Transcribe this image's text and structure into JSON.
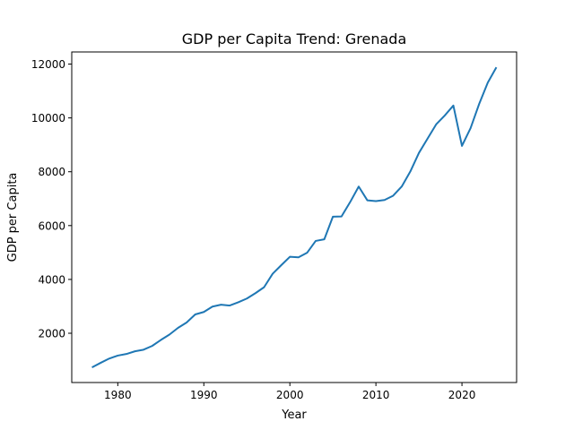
{
  "chart_data": {
    "type": "line",
    "title": "GDP per Capita Trend: Grenada",
    "xlabel": "Year",
    "ylabel": "GDP per Capita",
    "xlim": [
      1974.65,
      2026.35
    ],
    "ylim": [
      170,
      12450
    ],
    "grid": false,
    "xticks": [
      1980,
      1990,
      2000,
      2010,
      2020
    ],
    "yticks": [
      2000,
      4000,
      6000,
      8000,
      10000,
      12000
    ],
    "line_color": "#1f77b4",
    "series": [
      {
        "x": [
          1977,
          1978,
          1979,
          1980,
          1981,
          1982,
          1983,
          1984,
          1985,
          1986,
          1987,
          1988,
          1989,
          1990,
          1991,
          1992,
          1993,
          1994,
          1995,
          1996,
          1997,
          1998,
          1999,
          2000,
          2001,
          2002,
          2003,
          2004,
          2005,
          2006,
          2007,
          2008,
          2009,
          2010,
          2011,
          2012,
          2013,
          2014,
          2015,
          2016,
          2017,
          2018,
          2019,
          2020,
          2021,
          2022,
          2023,
          2024
        ],
        "values": [
          730,
          900,
          1060,
          1170,
          1230,
          1330,
          1390,
          1530,
          1750,
          1950,
          2200,
          2400,
          2700,
          2790,
          2990,
          3060,
          3030,
          3150,
          3290,
          3490,
          3710,
          4210,
          4530,
          4840,
          4820,
          4990,
          5430,
          5490,
          6330,
          6340,
          6870,
          7450,
          6940,
          6910,
          6950,
          7110,
          7450,
          8010,
          8700,
          9230,
          9760,
          10090,
          10460,
          8960,
          9620,
          10520,
          11310,
          11880
        ]
      }
    ]
  }
}
